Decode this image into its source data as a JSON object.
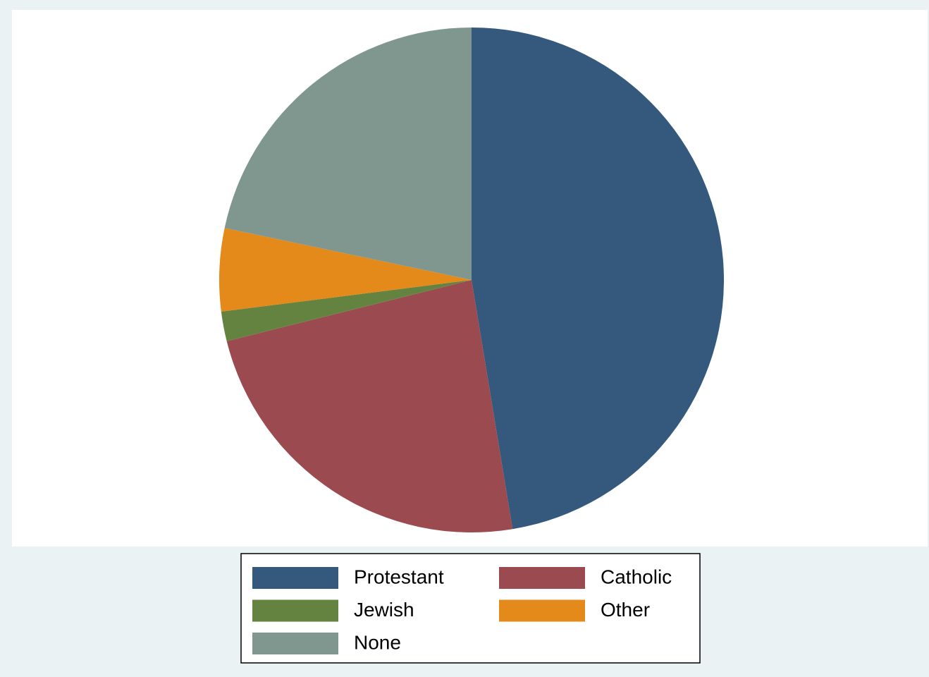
{
  "chart_data": {
    "type": "pie",
    "categories": [
      "Protestant",
      "Catholic",
      "Jewish",
      "Other",
      "None"
    ],
    "values": [
      47.4,
      23.7,
      1.9,
      5.3,
      21.7
    ],
    "colors": [
      "#34597d",
      "#9b4a50",
      "#658340",
      "#e38a1b",
      "#7f978f"
    ],
    "legend": "bottom"
  }
}
